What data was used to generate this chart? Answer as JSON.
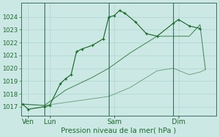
{
  "bg_color": "#cce8e4",
  "grid_color": "#aad4cc",
  "line_color": "#1a6b2a",
  "xlabel": "Pression niveau de la mer( hPa )",
  "ylim": [
    1016.3,
    1025.1
  ],
  "xlim": [
    -0.5,
    72
  ],
  "yticks": [
    1017,
    1018,
    1019,
    1020,
    1021,
    1022,
    1023,
    1024
  ],
  "ytick_fontsize": 6.5,
  "xtick_fontsize": 7,
  "xlabel_fontsize": 7.5,
  "vlines": [
    8,
    32,
    56
  ],
  "vline_color": "#336655",
  "xtick_positions": [
    2,
    10,
    34,
    58
  ],
  "xtick_labels": [
    "Ven",
    "Lun",
    "Sam",
    "Dim"
  ],
  "line1_x": [
    0,
    2,
    8,
    10,
    14,
    16,
    18,
    20,
    22,
    26,
    30,
    32,
    34,
    36,
    38,
    42,
    46,
    50,
    56,
    58,
    62,
    66
  ],
  "line1_y": [
    1017.2,
    1016.8,
    1017.0,
    1017.1,
    1018.8,
    1019.2,
    1019.5,
    1021.3,
    1021.5,
    1021.8,
    1022.3,
    1024.0,
    1024.1,
    1024.5,
    1024.3,
    1023.6,
    1022.7,
    1022.5,
    1023.5,
    1023.8,
    1023.3,
    1023.1
  ],
  "line2_x": [
    0,
    8,
    16,
    26,
    32,
    40,
    50,
    56,
    62,
    66,
    68
  ],
  "line2_y": [
    1017.2,
    1017.1,
    1018.3,
    1019.3,
    1020.0,
    1021.2,
    1022.5,
    1022.5,
    1022.5,
    1023.4,
    1019.9
  ],
  "line3_x": [
    0,
    8,
    32,
    40,
    50,
    56,
    62,
    66,
    68
  ],
  "line3_y": [
    1017.2,
    1017.1,
    1017.8,
    1018.5,
    1019.8,
    1020.0,
    1019.5,
    1019.7,
    1019.9
  ]
}
